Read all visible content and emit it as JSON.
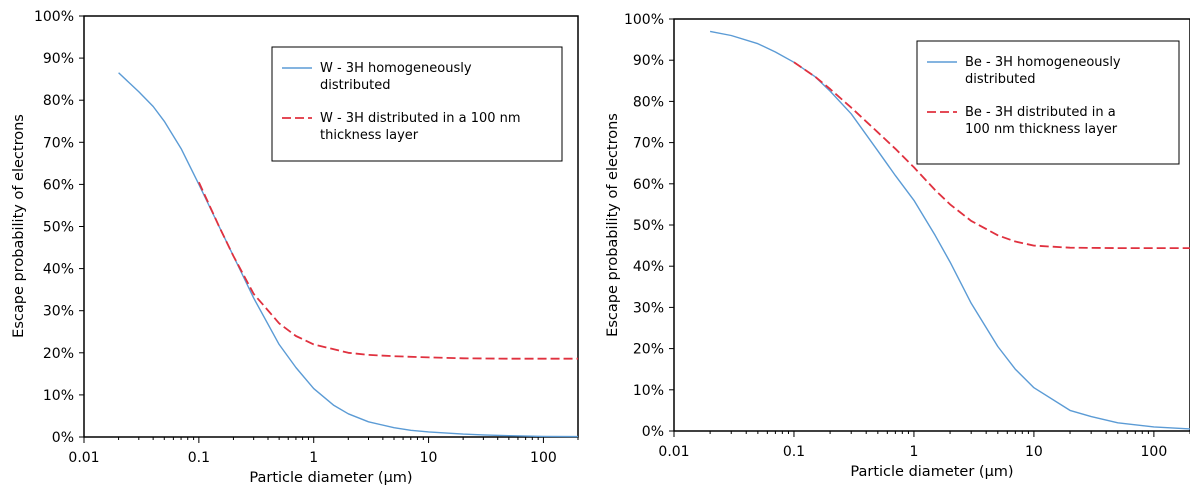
{
  "chart_data": [
    {
      "type": "line",
      "title": "",
      "xlabel": "Particle diameter (µm)",
      "ylabel": "Escape probability of electrons",
      "x_scale": "log",
      "xlim": [
        0.01,
        200
      ],
      "ylim": [
        0,
        100
      ],
      "x_tick_labels": [
        "0.01",
        "0.1",
        "1",
        "10",
        "100"
      ],
      "y_tick_labels": [
        "0%",
        "10%",
        "20%",
        "30%",
        "40%",
        "50%",
        "60%",
        "70%",
        "80%",
        "90%",
        "100%"
      ],
      "grid": false,
      "legend_position": "top-right",
      "series": [
        {
          "name": "W - 3H homogeneously distributed",
          "color": "#5b9bd5",
          "dash": "solid",
          "x": [
            0.02,
            0.03,
            0.04,
            0.05,
            0.07,
            0.1,
            0.15,
            0.2,
            0.3,
            0.5,
            0.7,
            1,
            1.5,
            2,
            3,
            5,
            7,
            10,
            20,
            30,
            50,
            100,
            200
          ],
          "y": [
            86.5,
            82,
            78.5,
            75,
            68.5,
            60,
            50,
            43,
            33,
            22,
            16.5,
            11.5,
            7.5,
            5.5,
            3.6,
            2.2,
            1.6,
            1.2,
            0.7,
            0.5,
            0.3,
            0.15,
            0.1
          ]
        },
        {
          "name": "W - 3H distributed in a 100 nm thickness layer",
          "color": "#e0313f",
          "dash": "dashed",
          "x": [
            0.1,
            0.15,
            0.2,
            0.3,
            0.5,
            0.7,
            1,
            2,
            3,
            5,
            10,
            20,
            50,
            100,
            200
          ],
          "y": [
            60.5,
            50,
            43,
            34,
            27,
            24,
            22,
            20,
            19.5,
            19.2,
            18.9,
            18.7,
            18.6,
            18.6,
            18.6
          ]
        }
      ]
    },
    {
      "type": "line",
      "title": "",
      "xlabel": "Particle diameter (µm)",
      "ylabel": "Escape probability of electrons",
      "x_scale": "log",
      "xlim": [
        0.01,
        200
      ],
      "ylim": [
        0,
        100
      ],
      "x_tick_labels": [
        "0.01",
        "0.1",
        "1",
        "10",
        "100"
      ],
      "y_tick_labels": [
        "0%",
        "10%",
        "20%",
        "30%",
        "40%",
        "50%",
        "60%",
        "70%",
        "80%",
        "90%",
        "100%"
      ],
      "grid": false,
      "legend_position": "top-right",
      "series": [
        {
          "name": "Be - 3H homogeneously distributed",
          "color": "#5b9bd5",
          "dash": "solid",
          "x": [
            0.02,
            0.03,
            0.05,
            0.07,
            0.1,
            0.15,
            0.2,
            0.3,
            0.5,
            0.7,
            1,
            1.5,
            2,
            3,
            5,
            7,
            10,
            20,
            30,
            50,
            100,
            200
          ],
          "y": [
            97,
            96,
            94,
            92,
            89.5,
            86,
            82.5,
            77,
            68,
            62,
            56,
            47.5,
            41,
            31,
            20.5,
            15,
            10.5,
            5,
            3.5,
            2,
            1,
            0.5
          ]
        },
        {
          "name": "Be - 3H distributed in a 100 nm thickness layer",
          "color": "#e0313f",
          "dash": "dashed",
          "x": [
            0.1,
            0.15,
            0.2,
            0.3,
            0.5,
            0.7,
            1,
            1.5,
            2,
            3,
            5,
            7,
            10,
            20,
            50,
            100,
            200
          ],
          "y": [
            89.5,
            86,
            83,
            78.5,
            72.5,
            68.5,
            64,
            58.5,
            55,
            51,
            47.5,
            46,
            45,
            44.5,
            44.4,
            44.4,
            44.4
          ]
        }
      ]
    }
  ]
}
